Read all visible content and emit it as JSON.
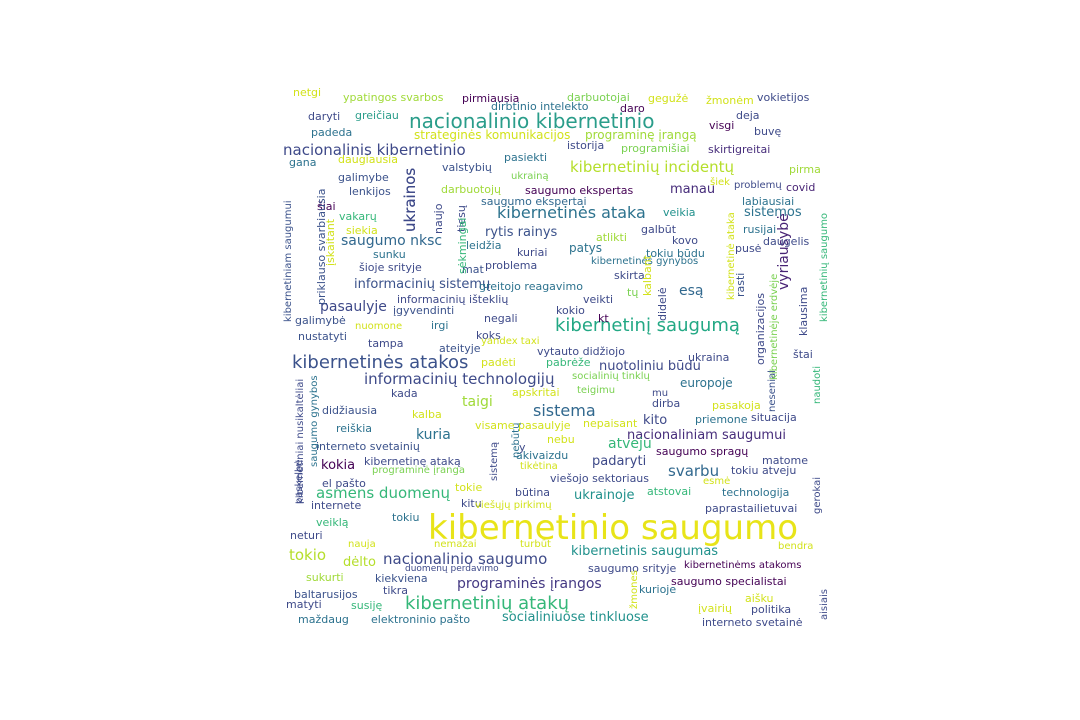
{
  "word_cloud": {
    "words": [
      {
        "text": "kibernetinio saugumo",
        "color": "#e8e419"
      },
      {
        "text": "nacionalinio kibernetinio",
        "color": "#2a9d8a"
      },
      {
        "text": "kibernetinių atakų",
        "color": "#35b779"
      },
      {
        "text": "kibernetinės atakos",
        "color": "#3b528b"
      },
      {
        "text": "kibernetinį saugumą",
        "color": "#22a884"
      },
      {
        "text": "kibernetinės ataka",
        "color": "#2c728e"
      },
      {
        "text": "nacionalinis kibernetinio",
        "color": "#3e4989"
      },
      {
        "text": "kibernetinių incidentų",
        "color": "#b5de2b"
      },
      {
        "text": "informacinių technologijų",
        "color": "#3e4a89"
      },
      {
        "text": "nacionalinio saugumo",
        "color": "#3e4a89"
      },
      {
        "text": "programinės įrangos",
        "color": "#443983"
      },
      {
        "text": "asmens duomenų",
        "color": "#35b779"
      },
      {
        "text": "socialiniuose tinkluose",
        "color": "#21918c"
      },
      {
        "text": "kibernetinis saugumas",
        "color": "#21918c"
      },
      {
        "text": "informacinių sistemų",
        "color": "#3b528b"
      },
      {
        "text": "saugumo nksc",
        "color": "#31688e"
      },
      {
        "text": "nacionaliniam saugumui",
        "color": "#472d7b"
      },
      {
        "text": "sistema",
        "color": "#31688e"
      },
      {
        "text": "svarbu",
        "color": "#31688e"
      },
      {
        "text": "ukrainos",
        "color": "#3e4989"
      },
      {
        "text": "vyriausybė",
        "color": "#482475"
      },
      {
        "text": "tokio",
        "color": "#b5de2b"
      },
      {
        "text": "pasaulyje",
        "color": "#3e4989"
      },
      {
        "text": "taigi",
        "color": "#a0da39"
      },
      {
        "text": "kuria",
        "color": "#2c728e"
      },
      {
        "text": "sistemos",
        "color": "#2c728e"
      },
      {
        "text": "esą",
        "color": "#31688e"
      },
      {
        "text": "manau",
        "color": "#472d7b"
      },
      {
        "text": "kokia",
        "color": "#440154"
      },
      {
        "text": "atveju",
        "color": "#35b779"
      },
      {
        "text": "kito",
        "color": "#3e4989"
      },
      {
        "text": "dėlto",
        "color": "#b5de2b"
      },
      {
        "text": "padaryti",
        "color": "#3e4a89"
      },
      {
        "text": "ukrainoje",
        "color": "#21918c"
      },
      {
        "text": "rytis rainys",
        "color": "#3b528b"
      },
      {
        "text": "nuotoliniu būdu",
        "color": "#3e4989"
      },
      {
        "text": "europoje",
        "color": "#2c728e"
      },
      {
        "text": "programinę įrangą",
        "color": "#a0da39"
      },
      {
        "text": "netgi",
        "color": "#d2e21b"
      },
      {
        "text": "ypatingos svarbos",
        "color": "#a0da39"
      },
      {
        "text": "pirmiausia",
        "color": "#440154"
      },
      {
        "text": "darbuotojai",
        "color": "#7ad151"
      },
      {
        "text": "gegužė",
        "color": "#d2e21b"
      },
      {
        "text": "žmonėm",
        "color": "#d2e21b"
      },
      {
        "text": "vokietijos",
        "color": "#3e4a89"
      },
      {
        "text": "dirbtinio intelekto",
        "color": "#2c728e"
      },
      {
        "text": "daro",
        "color": "#440154"
      },
      {
        "text": "deja",
        "color": "#3e4a89"
      },
      {
        "text": "daryti",
        "color": "#3e4a89"
      },
      {
        "text": "greičiau",
        "color": "#2a9d8a"
      },
      {
        "text": "visgi",
        "color": "#440154"
      },
      {
        "text": "padeda",
        "color": "#2c728e"
      },
      {
        "text": "strateginės komunikacijos",
        "color": "#d2e21b"
      },
      {
        "text": "buvę",
        "color": "#3e4a89"
      },
      {
        "text": "istorija",
        "color": "#3e4a89"
      },
      {
        "text": "programišiai",
        "color": "#7ad151"
      },
      {
        "text": "skirtigreitai",
        "color": "#472d7b"
      },
      {
        "text": "gana",
        "color": "#2c728e"
      },
      {
        "text": "daugiausia",
        "color": "#d2e21b"
      },
      {
        "text": "pasiekti",
        "color": "#2c728e"
      },
      {
        "text": "pirma",
        "color": "#a0da39"
      },
      {
        "text": "valstybių",
        "color": "#3b528b"
      },
      {
        "text": "ukrainą",
        "color": "#7ad151"
      },
      {
        "text": "galimybe",
        "color": "#3b528b"
      },
      {
        "text": "šiek",
        "color": "#d2e21b"
      },
      {
        "text": "problemų",
        "color": "#3e4a89"
      },
      {
        "text": "covid",
        "color": "#482475"
      },
      {
        "text": "lenkijos",
        "color": "#3b528b"
      },
      {
        "text": "darbuotojų",
        "color": "#a0da39"
      },
      {
        "text": "saugumo ekspertas",
        "color": "#440154"
      },
      {
        "text": "labiausiai",
        "color": "#2c728e"
      },
      {
        "text": "šiai",
        "color": "#440154"
      },
      {
        "text": "saugumo ekspertai",
        "color": "#31688e"
      },
      {
        "text": "vakarų",
        "color": "#35b779"
      },
      {
        "text": "veikia",
        "color": "#21918c"
      },
      {
        "text": "siekia",
        "color": "#d2e21b"
      },
      {
        "text": "galbūt",
        "color": "#3e4989"
      },
      {
        "text": "rusijai",
        "color": "#2c728e"
      },
      {
        "text": "atlikti",
        "color": "#a0da39"
      },
      {
        "text": "kovo",
        "color": "#3e4a89"
      },
      {
        "text": "leidžia",
        "color": "#2c728e"
      },
      {
        "text": "daugelis",
        "color": "#3e4a89"
      },
      {
        "text": "sunku",
        "color": "#2c728e"
      },
      {
        "text": "kuriai",
        "color": "#3e4989"
      },
      {
        "text": "patys",
        "color": "#2c728e"
      },
      {
        "text": "tokiu būdu",
        "color": "#2c728e"
      },
      {
        "text": "pusė",
        "color": "#3e4989"
      },
      {
        "text": "šioje srityje",
        "color": "#3e4a89"
      },
      {
        "text": "mat",
        "color": "#3b528b"
      },
      {
        "text": "problema",
        "color": "#3e4a89"
      },
      {
        "text": "kibernetinės gynybos",
        "color": "#2c728e"
      },
      {
        "text": "skirta",
        "color": "#3e4a89"
      },
      {
        "text": "greitojo reagavimo",
        "color": "#2c728e"
      },
      {
        "text": "tų",
        "color": "#7ad151"
      },
      {
        "text": "rasti",
        "color": "#3b528b"
      },
      {
        "text": "informacinių išteklių",
        "color": "#3e4989"
      },
      {
        "text": "veikti",
        "color": "#3e4a89"
      },
      {
        "text": "įgyvendinti",
        "color": "#3b528b"
      },
      {
        "text": "kokio",
        "color": "#3e4a89"
      },
      {
        "text": "galimybė",
        "color": "#3b528b"
      },
      {
        "text": "negali",
        "color": "#3e4a89"
      },
      {
        "text": "kt",
        "color": "#440154"
      },
      {
        "text": "klausima",
        "color": "#3e4a89"
      },
      {
        "text": "nuomone",
        "color": "#d2e21b"
      },
      {
        "text": "irgi",
        "color": "#2c728e"
      },
      {
        "text": "koks",
        "color": "#3e4a89"
      },
      {
        "text": "nustatyti",
        "color": "#3b528b"
      },
      {
        "text": "yandex taxi",
        "color": "#d2e21b"
      },
      {
        "text": "tampa",
        "color": "#3e4a89"
      },
      {
        "text": "ateityje",
        "color": "#3b528b"
      },
      {
        "text": "vytauto didžiojo",
        "color": "#3e4a89"
      },
      {
        "text": "štai",
        "color": "#3e4a89"
      },
      {
        "text": "ukraina",
        "color": "#3e4a89"
      },
      {
        "text": "padėti",
        "color": "#d2e21b"
      },
      {
        "text": "pabrėže",
        "color": "#35b779"
      },
      {
        "text": "socialinių tinklų",
        "color": "#7ad151"
      },
      {
        "text": "nesenial",
        "color": "#3b528b"
      },
      {
        "text": "apskritai",
        "color": "#d2e21b"
      },
      {
        "text": "teigimu",
        "color": "#7ad151"
      },
      {
        "text": "kada",
        "color": "#3e4a89"
      },
      {
        "text": "mu",
        "color": "#3e4a89"
      },
      {
        "text": "dirba",
        "color": "#3e4a89"
      },
      {
        "text": "pasakoja",
        "color": "#d2e21b"
      },
      {
        "text": "didžiausia",
        "color": "#3b528b"
      },
      {
        "text": "kalba",
        "color": "#d2e21b"
      },
      {
        "text": "priemone",
        "color": "#2c728e"
      },
      {
        "text": "situacija",
        "color": "#3e4989"
      },
      {
        "text": "reiškia",
        "color": "#2c728e"
      },
      {
        "text": "visame pasaulyje",
        "color": "#d2e21b"
      },
      {
        "text": "nepaisant",
        "color": "#d2e21b"
      },
      {
        "text": "interneto svetainių",
        "color": "#3b528b"
      },
      {
        "text": "nebu",
        "color": "#d2e21b"
      },
      {
        "text": "saugumo spragų",
        "color": "#440154"
      },
      {
        "text": "kibernetinę ataką",
        "color": "#3e4a89"
      },
      {
        "text": "akivaizdu",
        "color": "#2c728e"
      },
      {
        "text": "matome",
        "color": "#3e4a89"
      },
      {
        "text": "programinė įranga",
        "color": "#7ad151"
      },
      {
        "text": "tikėtina",
        "color": "#d2e21b"
      },
      {
        "text": "tokiu atveju",
        "color": "#3e4a89"
      },
      {
        "text": "el pašto",
        "color": "#3e4a89"
      },
      {
        "text": "viešojo sektoriaus",
        "color": "#3e4a89"
      },
      {
        "text": "esmė",
        "color": "#d2e21b"
      },
      {
        "text": "tokie",
        "color": "#d2e21b"
      },
      {
        "text": "atstovai",
        "color": "#35b779"
      },
      {
        "text": "technologija",
        "color": "#2c728e"
      },
      {
        "text": "būtina",
        "color": "#3e4a89"
      },
      {
        "text": "internete",
        "color": "#3e4a89"
      },
      {
        "text": "kitu",
        "color": "#3e4a89"
      },
      {
        "text": "viešųjų pirkimų",
        "color": "#d2e21b"
      },
      {
        "text": "paprastailietuvai",
        "color": "#3e4a89"
      },
      {
        "text": "tokiu",
        "color": "#2c728e"
      },
      {
        "text": "veiklą",
        "color": "#35b779"
      },
      {
        "text": "neturi",
        "color": "#3e4a89"
      },
      {
        "text": "nauja",
        "color": "#d2e21b"
      },
      {
        "text": "nemažai",
        "color": "#d2e21b"
      },
      {
        "text": "turbūt",
        "color": "#d2e21b"
      },
      {
        "text": "bendra",
        "color": "#d2e21b"
      },
      {
        "text": "duomenų perdavimo",
        "color": "#3e4a89"
      },
      {
        "text": "saugumo srityje",
        "color": "#3e4a89"
      },
      {
        "text": "kibernetinėms atakoms",
        "color": "#440154"
      },
      {
        "text": "sukurti",
        "color": "#a0da39"
      },
      {
        "text": "kiekviena",
        "color": "#3b528b"
      },
      {
        "text": "saugumo specialistai",
        "color": "#440154"
      },
      {
        "text": "tikra",
        "color": "#3e4a89"
      },
      {
        "text": "kurioje",
        "color": "#2c728e"
      },
      {
        "text": "baltarusijos",
        "color": "#3b528b"
      },
      {
        "text": "matyti",
        "color": "#3e4a89"
      },
      {
        "text": "susiję",
        "color": "#35b779"
      },
      {
        "text": "įvairių",
        "color": "#d2e21b"
      },
      {
        "text": "aišku",
        "color": "#d2e21b"
      },
      {
        "text": "politika",
        "color": "#3e4a89"
      },
      {
        "text": "maždaug",
        "color": "#2c728e"
      },
      {
        "text": "elektroninio pašto",
        "color": "#2c728e"
      },
      {
        "text": "interneto svetainė",
        "color": "#3e4a89"
      },
      {
        "text": "ukrainos",
        "color": "#3e4989"
      },
      {
        "text": "naujo",
        "color": "#3e4a89"
      },
      {
        "text": "tiesų",
        "color": "#3e4a89"
      },
      {
        "text": "sėkmingai",
        "color": "#35b779"
      },
      {
        "text": "kibernetiniam saugumui",
        "color": "#3b528b"
      },
      {
        "text": "priklauso svarbiausia",
        "color": "#3b528b"
      },
      {
        "text": "įskaitant",
        "color": "#d2e21b"
      },
      {
        "text": "kibernetiniai nusikaltėliai",
        "color": "#3e4a89"
      },
      {
        "text": "saugumo gynybos",
        "color": "#2c728e"
      },
      {
        "text": "paskelbė",
        "color": "#3e4a89"
      },
      {
        "text": "didelė",
        "color": "#3e4a89"
      },
      {
        "text": "kalbant",
        "color": "#d2e21b"
      },
      {
        "text": "organizacijos",
        "color": "#3e4989"
      },
      {
        "text": "kibernetinėje erdvėje",
        "color": "#7ad151"
      },
      {
        "text": "kibernetinė ataka",
        "color": "#d2e21b"
      },
      {
        "text": "kibernetinių saugumo",
        "color": "#35b779"
      },
      {
        "text": "naudoti",
        "color": "#35b779"
      },
      {
        "text": "gerokai",
        "color": "#3e4a89"
      },
      {
        "text": "aisiais",
        "color": "#3e4a89"
      },
      {
        "text": "nebūtų",
        "color": "#2c728e"
      },
      {
        "text": "sistemą",
        "color": "#3e4a89"
      },
      {
        "text": "žmones",
        "color": "#d2e21b"
      },
      {
        "text": "y",
        "color": "#3e4a89"
      }
    ]
  }
}
